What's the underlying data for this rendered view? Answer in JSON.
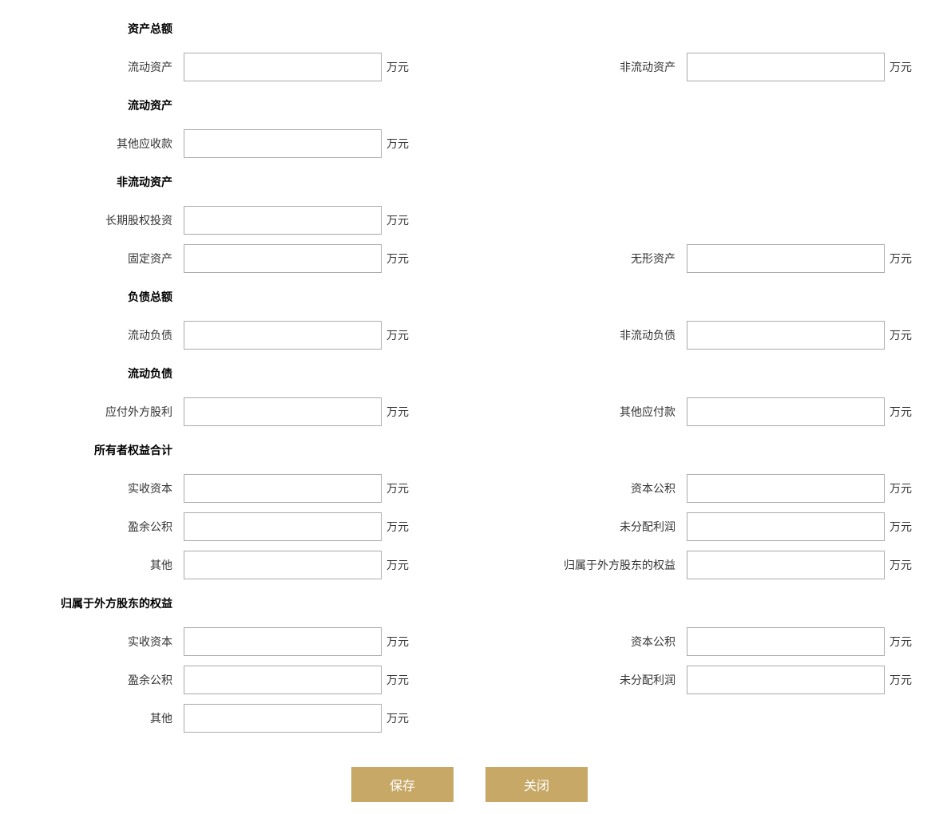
{
  "unit": "万元",
  "sections": {
    "total_assets": {
      "header": "资产总额",
      "current_assets_label": "流动资产",
      "non_current_assets_label": "非流动资产"
    },
    "current_assets": {
      "header": "流动资产",
      "other_receivables_label": "其他应收款"
    },
    "non_current_assets": {
      "header": "非流动资产",
      "long_term_equity_label": "长期股权投资",
      "fixed_assets_label": "固定资产",
      "intangible_assets_label": "无形资产"
    },
    "total_liabilities": {
      "header": "负债总额",
      "current_liabilities_label": "流动负债",
      "non_current_liabilities_label": "非流动负债"
    },
    "current_liabilities": {
      "header": "流动负债",
      "foreign_dividends_payable_label": "应付外方股利",
      "other_payables_label": "其他应付款"
    },
    "owners_equity": {
      "header": "所有者权益合计",
      "paid_in_capital_label": "实收资本",
      "capital_reserve_label": "资本公积",
      "surplus_reserve_label": "盈余公积",
      "undistributed_profit_label": "未分配利润",
      "other_label": "其他",
      "foreign_shareholder_equity_label": "归属于外方股东的权益"
    },
    "foreign_shareholder_equity": {
      "header": "归属于外方股东的权益",
      "paid_in_capital_label": "实收资本",
      "capital_reserve_label": "资本公积",
      "surplus_reserve_label": "盈余公积",
      "undistributed_profit_label": "未分配利润",
      "other_label": "其他"
    }
  },
  "buttons": {
    "save": "保存",
    "close": "关闭"
  },
  "colors": {
    "button_bg": "#c7a867",
    "button_text": "#ffffff",
    "input_border": "#aaaaaa",
    "text": "#333333"
  }
}
